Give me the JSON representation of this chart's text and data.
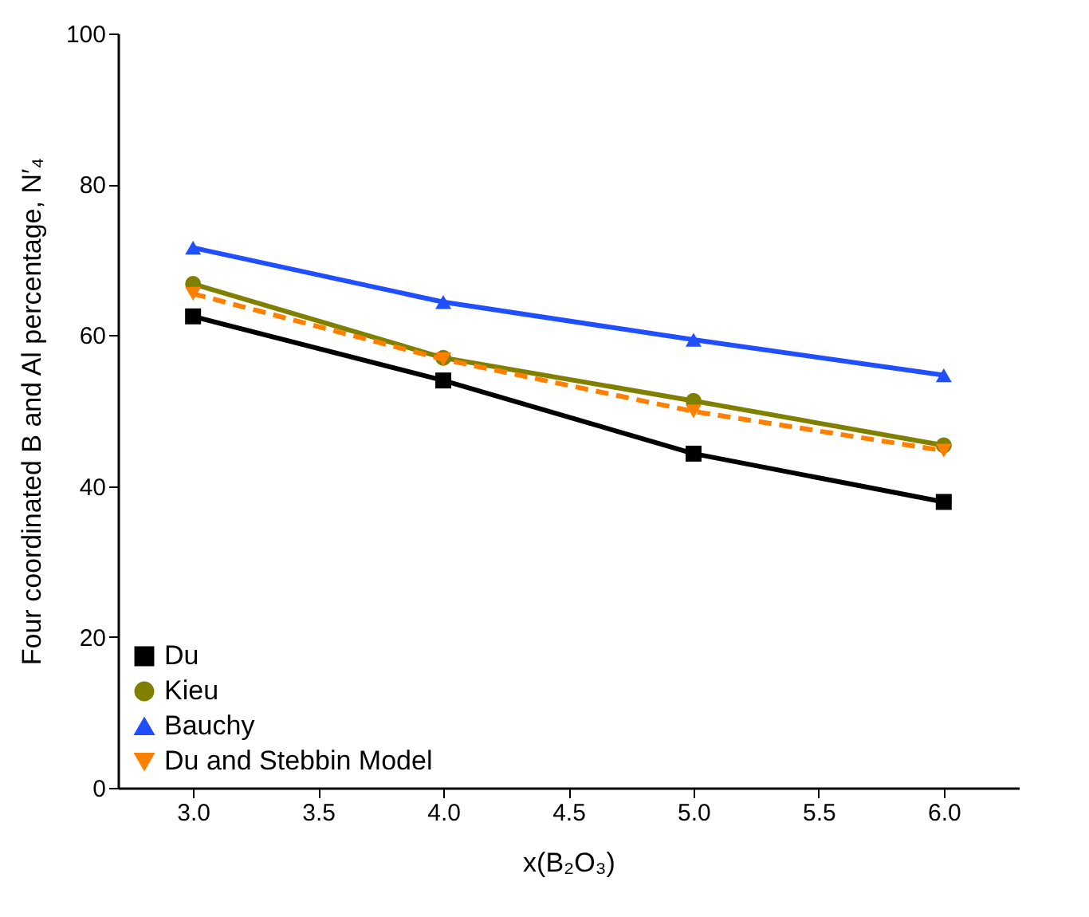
{
  "chart_data": {
    "type": "line",
    "xlabel": "x(B₂O₃)",
    "ylabel": "Four coordinated B and Al percentage, N′₄",
    "x": [
      3.0,
      4.0,
      5.0,
      6.0
    ],
    "series": [
      {
        "name": "Du",
        "color": "#000000",
        "marker": "square",
        "line_style": "solid",
        "values": [
          62.5,
          54.0,
          44.3,
          37.9
        ]
      },
      {
        "name": "Kieu",
        "color": "#808000",
        "marker": "circle",
        "line_style": "solid",
        "values": [
          66.8,
          57.0,
          51.3,
          45.4
        ]
      },
      {
        "name": "Bauchy",
        "color": "#1f4fff",
        "marker": "triangle",
        "line_style": "solid",
        "values": [
          71.6,
          64.4,
          59.4,
          54.7
        ]
      },
      {
        "name": "Du and Stebbin Model",
        "color": "#ff8000",
        "marker": "triangle-down",
        "line_style": "dashed",
        "values": [
          65.5,
          56.8,
          49.9,
          44.7
        ]
      }
    ],
    "xlim": [
      2.7,
      6.3
    ],
    "xticks": [
      {
        "value": 3,
        "label": "3.0"
      },
      {
        "value": 3.5,
        "label": "3.5"
      },
      {
        "value": 4,
        "label": "4.0"
      },
      {
        "value": 4.5,
        "label": "4.5"
      },
      {
        "value": 5,
        "label": "5.0"
      },
      {
        "value": 5.5,
        "label": "5.5"
      },
      {
        "value": 6,
        "label": "6.0"
      }
    ],
    "ylim": [
      0,
      100
    ],
    "yticks": [
      0,
      20,
      40,
      60,
      80,
      100
    ],
    "grid": false,
    "legend": "bottom left"
  }
}
